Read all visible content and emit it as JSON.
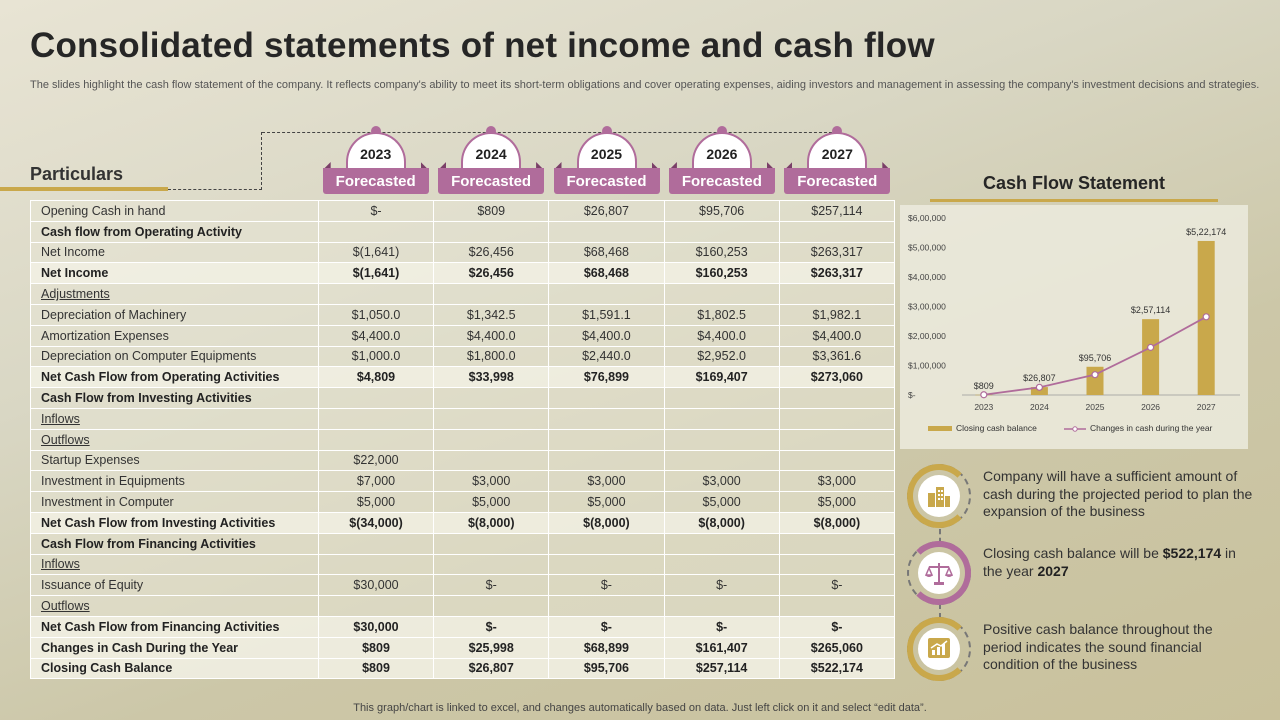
{
  "title": "Consolidated statements of net income and cash flow",
  "subtitle": "The slides highlight the cash flow statement of the company. It reflects company's ability to  meet its short-term obligations and cover operating expenses, aiding investors and management in assessing the company's investment decisions and strategies.",
  "particulars_label": "Particulars",
  "years": [
    {
      "year": "2023",
      "label": "Forecasted"
    },
    {
      "year": "2024",
      "label": "Forecasted"
    },
    {
      "year": "2025",
      "label": "Forecasted"
    },
    {
      "year": "2026",
      "label": "Forecasted"
    },
    {
      "year": "2027",
      "label": "Forecasted"
    }
  ],
  "rows": [
    {
      "label": "Opening Cash in hand",
      "values": [
        "$-",
        "$809",
        "$26,807",
        "$95,706",
        "$257,114"
      ],
      "style": "normal"
    },
    {
      "label": "Cash flow from Operating Activity",
      "values": [
        "",
        "",
        "",
        "",
        ""
      ],
      "style": "section"
    },
    {
      "label": "Net Income",
      "values": [
        "$(1,641)",
        "$26,456",
        "$68,468",
        "$160,253",
        "$263,317"
      ],
      "style": "normal"
    },
    {
      "label": "Net Income",
      "values": [
        "$(1,641)",
        "$26,456",
        "$68,468",
        "$160,253",
        "$263,317"
      ],
      "style": "bold"
    },
    {
      "label": "Adjustments",
      "values": [
        "",
        "",
        "",
        "",
        ""
      ],
      "style": "underline"
    },
    {
      "label": "Depreciation  of Machinery",
      "values": [
        "$1,050.0",
        "$1,342.5",
        "$1,591.1",
        "$1,802.5",
        "$1,982.1"
      ],
      "style": "normal"
    },
    {
      "label": "Amortization Expenses",
      "values": [
        "$4,400.0",
        "$4,400.0",
        "$4,400.0",
        "$4,400.0",
        "$4,400.0"
      ],
      "style": "normal"
    },
    {
      "label": "Depreciation  on Computer Equipments",
      "values": [
        "$1,000.0",
        "$1,800.0",
        "$2,440.0",
        "$2,952.0",
        "$3,361.6"
      ],
      "style": "normal"
    },
    {
      "label": "Net Cash Flow from Operating Activities",
      "values": [
        "$4,809",
        "$33,998",
        "$76,899",
        "$169,407",
        "$273,060"
      ],
      "style": "bold"
    },
    {
      "label": "Cash Flow from Investing Activities",
      "values": [
        "",
        "",
        "",
        "",
        ""
      ],
      "style": "section"
    },
    {
      "label": "Inflows",
      "values": [
        "",
        "",
        "",
        "",
        ""
      ],
      "style": "underline"
    },
    {
      "label": "Outflows",
      "values": [
        "",
        "",
        "",
        "",
        ""
      ],
      "style": "underline"
    },
    {
      "label": "Startup Expenses",
      "values": [
        "$22,000",
        "",
        "",
        "",
        ""
      ],
      "style": "normal"
    },
    {
      "label": "Investment  in Equipments",
      "values": [
        "$7,000",
        "$3,000",
        "$3,000",
        "$3,000",
        "$3,000"
      ],
      "style": "normal"
    },
    {
      "label": "Investment  in Computer",
      "values": [
        "$5,000",
        "$5,000",
        "$5,000",
        "$5,000",
        "$5,000"
      ],
      "style": "normal"
    },
    {
      "label": "Net Cash Flow from Investing Activities",
      "values": [
        "$(34,000)",
        "$(8,000)",
        "$(8,000)",
        "$(8,000)",
        "$(8,000)"
      ],
      "style": "bold"
    },
    {
      "label": "Cash Flow from Financing Activities",
      "values": [
        "",
        "",
        "",
        "",
        ""
      ],
      "style": "section"
    },
    {
      "label": "Inflows",
      "values": [
        "",
        "",
        "",
        "",
        ""
      ],
      "style": "underline"
    },
    {
      "label": "Issuance of Equity",
      "values": [
        "$30,000",
        "$-",
        "$-",
        "$-",
        "$-"
      ],
      "style": "normal"
    },
    {
      "label": "Outflows",
      "values": [
        "",
        "",
        "",
        "",
        ""
      ],
      "style": "underline"
    },
    {
      "label": "Net Cash Flow from Financing Activities",
      "values": [
        "$30,000",
        "$-",
        "$-",
        "$-",
        "$-"
      ],
      "style": "bold"
    },
    {
      "label": "Changes in Cash During the Year",
      "values": [
        "$809",
        "$25,998",
        "$68,899",
        "$161,407",
        "$265,060"
      ],
      "style": "bold"
    },
    {
      "label": "Closing Cash Balance",
      "values": [
        "$809",
        "$26,807",
        "$95,706",
        "$257,114",
        "$522,174"
      ],
      "style": "bold"
    }
  ],
  "chart_title": "Cash Flow Statement",
  "chart_data": {
    "type": "bar",
    "categories": [
      "2023",
      "2024",
      "2025",
      "2026",
      "2027"
    ],
    "series": [
      {
        "name": "Closing cash balance",
        "type": "bar",
        "values": [
          809,
          26807,
          95706,
          257114,
          522174
        ],
        "color": "#c9a84b"
      },
      {
        "name": "Changes in cash during the year",
        "type": "line",
        "values": [
          809,
          25998,
          68899,
          161407,
          265060
        ],
        "color": "#b06c9b"
      }
    ],
    "data_labels": [
      "$809",
      "$26,807",
      "$95,706",
      "$2,57,114",
      "$5,22,174"
    ],
    "y_ticks": [
      0,
      100000,
      200000,
      300000,
      400000,
      500000,
      600000
    ],
    "y_tick_labels": [
      "$-",
      "$1,00,000",
      "$2,00,000",
      "$3,00,000",
      "$4,00,000",
      "$5,00,000",
      "$6,00,000"
    ],
    "ylim": [
      0,
      600000
    ],
    "legend_position": "bottom",
    "grid": false
  },
  "info": [
    {
      "icon": "buildings-icon",
      "accent": "#c9a84b",
      "text": "Company will have a sufficient amount of cash during the projected period to plan the expansion of the business",
      "bold": ""
    },
    {
      "icon": "balance-scale-icon",
      "accent": "#b06c9b",
      "text_before": "Closing cash balance will be ",
      "bold": "$522,174",
      "text_middle": " in the year ",
      "bold2": "2027"
    },
    {
      "icon": "growth-chart-icon",
      "accent": "#c9a84b",
      "text": "Positive cash balance throughout the period indicates the sound financial condition of the business",
      "bold": ""
    }
  ],
  "footer": "This graph/chart is linked to excel,  and changes automatically based on data. Just left click on it and select “edit data”."
}
